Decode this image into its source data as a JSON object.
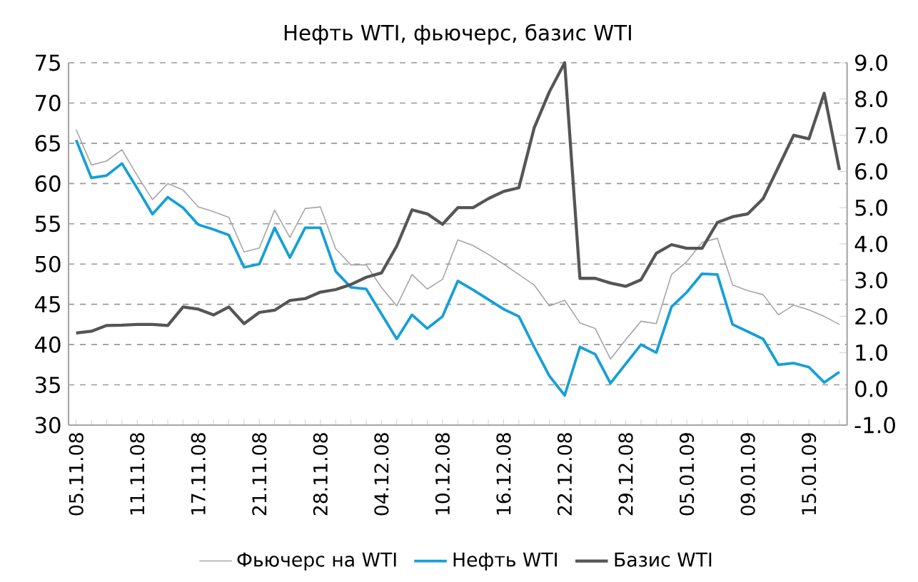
{
  "chart_data": {
    "type": "line",
    "title": "Нефть WTI, фьючерс, базис WTI",
    "categories": [
      "05.11.08",
      null,
      null,
      null,
      "11.11.08",
      null,
      null,
      null,
      "17.11.08",
      null,
      null,
      null,
      "21.11.08",
      null,
      null,
      null,
      "28.11.08",
      null,
      null,
      null,
      "04.12.08",
      null,
      null,
      null,
      "10.12.08",
      null,
      null,
      null,
      "16.12.08",
      null,
      null,
      null,
      "22.12.08",
      null,
      null,
      null,
      "29.12.08",
      null,
      null,
      null,
      "05.01.09",
      null,
      null,
      null,
      "09.01.09",
      null,
      null,
      null,
      "15.01.09",
      null,
      null
    ],
    "series": [
      {
        "name": "Фьючерс на WTI",
        "color": "#a6a6a6",
        "values": [
          66.7,
          62.3,
          62.8,
          64.2,
          61.0,
          58.0,
          60.0,
          59.2,
          57.1,
          56.5,
          55.8,
          51.5,
          52.0,
          56.7,
          53.3,
          56.9,
          57.1,
          51.9,
          49.9,
          49.9,
          47.1,
          44.8,
          48.7,
          46.9,
          48.1,
          53.0,
          52.3,
          51.2,
          50.0,
          48.7,
          47.4,
          44.8,
          45.5,
          42.7,
          42.0,
          38.2,
          40.6,
          42.9,
          42.6,
          48.7,
          50.3,
          52.7,
          53.2,
          47.4,
          46.7,
          46.2,
          43.7,
          44.9,
          44.3,
          43.5,
          42.5
        ]
      },
      {
        "name": "Нефть WTI",
        "color": "#159fd9",
        "values": [
          65.4,
          60.7,
          61.0,
          62.5,
          59.4,
          56.2,
          58.3,
          57.0,
          54.9,
          54.3,
          53.6,
          49.6,
          50.0,
          54.5,
          50.8,
          54.5,
          54.5,
          49.1,
          47.1,
          46.9,
          43.8,
          40.7,
          43.7,
          42.0,
          43.5,
          47.9,
          46.8,
          45.6,
          44.4,
          43.5,
          39.7,
          36.1,
          33.7,
          39.7,
          38.8,
          35.2,
          37.6,
          40.0,
          39.0,
          44.7,
          46.5,
          48.8,
          48.7,
          42.5,
          41.6,
          40.7,
          37.5,
          37.7,
          37.2,
          35.3,
          36.6
        ]
      },
      {
        "name": "Базис WTI",
        "color": "#555555",
        "axis": "y2",
        "values": [
          1.54,
          1.59,
          1.75,
          1.76,
          1.78,
          1.78,
          1.75,
          2.26,
          2.2,
          2.04,
          2.26,
          1.8,
          2.11,
          2.17,
          2.44,
          2.49,
          2.67,
          2.74,
          2.88,
          3.08,
          3.2,
          3.94,
          4.94,
          4.83,
          4.54,
          5.0,
          5.0,
          5.25,
          5.45,
          5.55,
          7.2,
          8.2,
          9.0,
          3.05,
          3.05,
          2.92,
          2.83,
          3.01,
          3.74,
          3.98,
          3.88,
          3.88,
          4.59,
          4.75,
          4.83,
          5.25,
          6.12,
          7.0,
          6.9,
          8.16,
          6.04
        ]
      }
    ],
    "ylim": [
      30,
      75
    ],
    "yticks": [
      30,
      35,
      40,
      45,
      50,
      55,
      60,
      65,
      70,
      75
    ],
    "y2lim": [
      -1,
      9
    ],
    "y2ticks": [
      {
        "value": -1,
        "label": "-1.0"
      },
      {
        "value": 0,
        "label": "0.0"
      },
      {
        "value": 1,
        "label": "1.0"
      },
      {
        "value": 2,
        "label": "2.0"
      },
      {
        "value": 3,
        "label": "3.0"
      },
      {
        "value": 4,
        "label": "4.0"
      },
      {
        "value": 5,
        "label": "5.0"
      },
      {
        "value": 6,
        "label": "6.0"
      },
      {
        "value": 7,
        "label": "7.0"
      },
      {
        "value": 8,
        "label": "8.0"
      },
      {
        "value": 9,
        "label": "9.0"
      }
    ],
    "grid": "y",
    "legend": "bottom",
    "marker": "none",
    "line_style": "solid"
  }
}
